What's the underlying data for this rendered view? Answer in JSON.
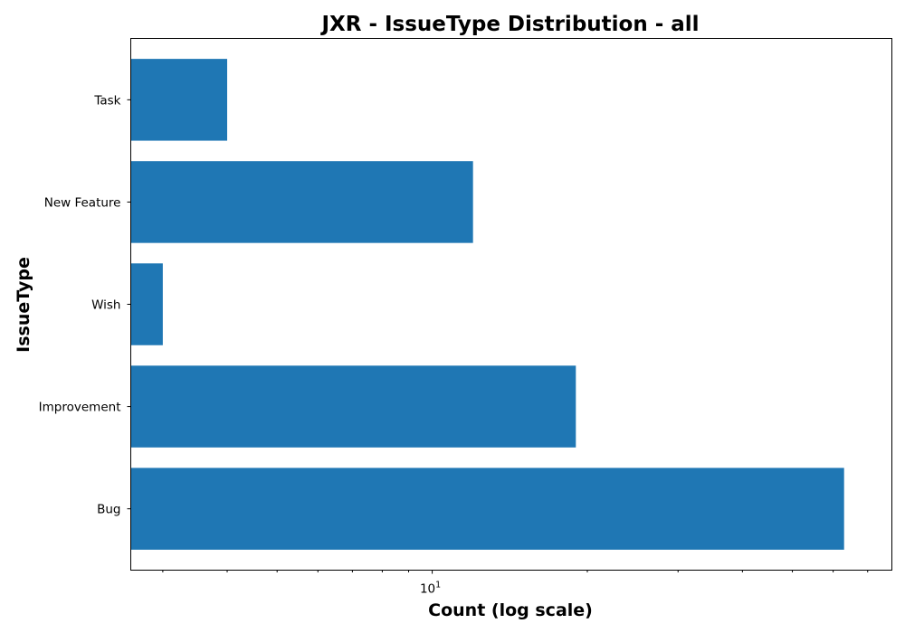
{
  "chart_data": {
    "type": "bar",
    "orientation": "horizontal",
    "title": "JXR - IssueType Distribution - all",
    "xlabel": "Count (log scale)",
    "ylabel": "IssueType",
    "x_scale": "log",
    "xlim": [
      2.6,
      78
    ],
    "categories": [
      "Bug",
      "Improvement",
      "Wish",
      "New Feature",
      "Task"
    ],
    "values": [
      63,
      19,
      3,
      12,
      4
    ],
    "x_major_ticks": [
      {
        "value": 10,
        "base": "10",
        "exp": "1"
      }
    ],
    "x_minor_ticks": [
      3,
      4,
      5,
      6,
      7,
      8,
      9,
      20,
      30,
      40,
      50,
      60,
      70
    ],
    "bar_color": "#1f77b4",
    "grid": false,
    "legend": "none"
  }
}
